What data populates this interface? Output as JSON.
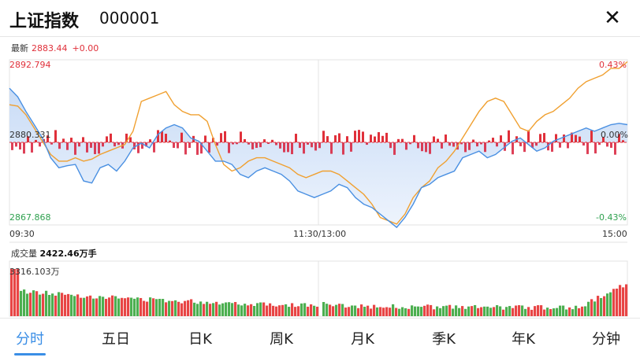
{
  "header": {
    "title": "上证指数",
    "code": "000001",
    "close_icon": "close-icon",
    "close_symbol": "✕"
  },
  "price_panel": {
    "latest_label": "最新",
    "latest_value": "2883.44",
    "latest_change": "+0.00",
    "y_high": "2892.794",
    "y_mid": "2880.331",
    "y_low": "2867.868",
    "pct_high": "0.43%",
    "pct_mid": "0.00%",
    "pct_low": "-0.43%",
    "time_start": "09:30",
    "time_mid": "11:30/13:00",
    "time_end": "15:00"
  },
  "volume_panel": {
    "label": "成交量",
    "value": "2422.46万手",
    "max_value": "3316.103万"
  },
  "tabs": [
    "分时",
    "五日",
    "日K",
    "周K",
    "月K",
    "季K",
    "年K",
    "分钟"
  ],
  "active_tab": 0,
  "colors": {
    "up": "#e0303a",
    "down": "#2fa14f",
    "price_line": "#4a90e2",
    "avg_line": "#f0a030",
    "accent": "#3a8ee6"
  },
  "chart_data": {
    "type": "line",
    "y_range": [
      2867.868,
      2892.794
    ],
    "y_base": 2880.331,
    "series": [
      {
        "values": [
          2888.5,
          2887.2,
          2885.0,
          2883.0,
          2881.0,
          2878.0,
          2876.5,
          2876.8,
          2877.0,
          2874.5,
          2874.2,
          2876.5,
          2877.0,
          2876.0,
          2877.5,
          2879.5,
          2880.2,
          2879.5,
          2881.5,
          2882.5,
          2883.0,
          2882.5,
          2881.0,
          2880.5,
          2879.0,
          2877.5,
          2877.5,
          2877.0,
          2875.5,
          2875.0,
          2876.0,
          2876.5,
          2876.0,
          2875.5,
          2874.5,
          2873.0,
          2872.5,
          2872.0,
          2872.5,
          2873.0,
          2874.0,
          2873.5,
          2872.0,
          2871.0,
          2870.5,
          2869.5,
          2868.5,
          2867.5,
          2869.0,
          2871.0,
          2873.5,
          2874.0,
          2875.0,
          2875.5,
          2876.0,
          2878.0,
          2878.5,
          2879.0,
          2878.0,
          2878.5,
          2879.5,
          2880.5,
          2881.0,
          2880.0,
          2879.0,
          2879.5,
          2880.5,
          2881.0,
          2881.5,
          2882.0,
          2882.5,
          2882.0,
          2882.5,
          2883.0,
          2883.2,
          2883.0
        ]
      },
      {
        "values": [
          2886.0,
          2885.8,
          2884.5,
          2882.5,
          2880.5,
          2878.5,
          2877.5,
          2877.5,
          2878.0,
          2877.5,
          2877.8,
          2878.5,
          2879.0,
          2879.5,
          2880.0,
          2882.0,
          2886.5,
          2887.0,
          2887.5,
          2888.0,
          2886.0,
          2885.0,
          2884.5,
          2884.5,
          2883.5,
          2880.0,
          2877.0,
          2876.0,
          2876.5,
          2877.5,
          2878.0,
          2878.0,
          2877.5,
          2877.0,
          2876.5,
          2875.5,
          2875.0,
          2875.5,
          2876.0,
          2876.0,
          2875.5,
          2874.5,
          2873.5,
          2872.5,
          2871.0,
          2869.0,
          2868.5,
          2868.0,
          2869.5,
          2872.0,
          2873.5,
          2874.5,
          2876.5,
          2877.5,
          2879.0,
          2881.0,
          2883.0,
          2885.0,
          2886.5,
          2887.0,
          2886.5,
          2884.5,
          2882.5,
          2882.0,
          2883.5,
          2884.5,
          2885.0,
          2886.0,
          2887.0,
          2888.5,
          2889.5,
          2890.0,
          2890.5,
          2891.5,
          2891.5,
          2892.5
        ]
      }
    ]
  }
}
